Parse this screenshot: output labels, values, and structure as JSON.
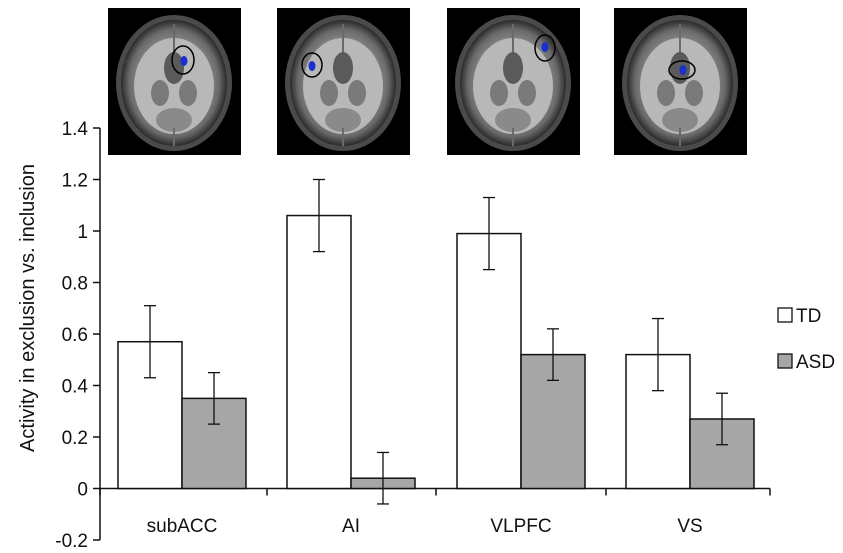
{
  "chart_data": {
    "type": "bar",
    "categories": [
      "subACC",
      "AI",
      "VLPFC",
      "VS"
    ],
    "series": [
      {
        "name": "TD",
        "color": "#ffffff",
        "values": [
          0.57,
          1.06,
          0.99,
          0.52
        ],
        "errors": [
          0.14,
          0.14,
          0.14,
          0.14
        ]
      },
      {
        "name": "ASD",
        "color": "#a6a6a6",
        "values": [
          0.35,
          0.04,
          0.52,
          0.27
        ],
        "errors": [
          0.1,
          0.1,
          0.1,
          0.1
        ]
      }
    ],
    "ylabel": "Activity in exclusion vs. inclusion",
    "ylim": [
      -0.2,
      1.4
    ],
    "yticks": [
      "-0.2",
      "0",
      "0.2",
      "0.4",
      "0.6",
      "0.8",
      "1",
      "1.2",
      "1.4"
    ],
    "grid": false,
    "legend": "right"
  },
  "brain_images": [
    {
      "region": "subACC",
      "icon": "brain-axial-slice-icon"
    },
    {
      "region": "AI",
      "icon": "brain-axial-slice-icon"
    },
    {
      "region": "VLPFC",
      "icon": "brain-axial-slice-icon"
    },
    {
      "region": "VS",
      "icon": "brain-axial-slice-icon"
    }
  ]
}
